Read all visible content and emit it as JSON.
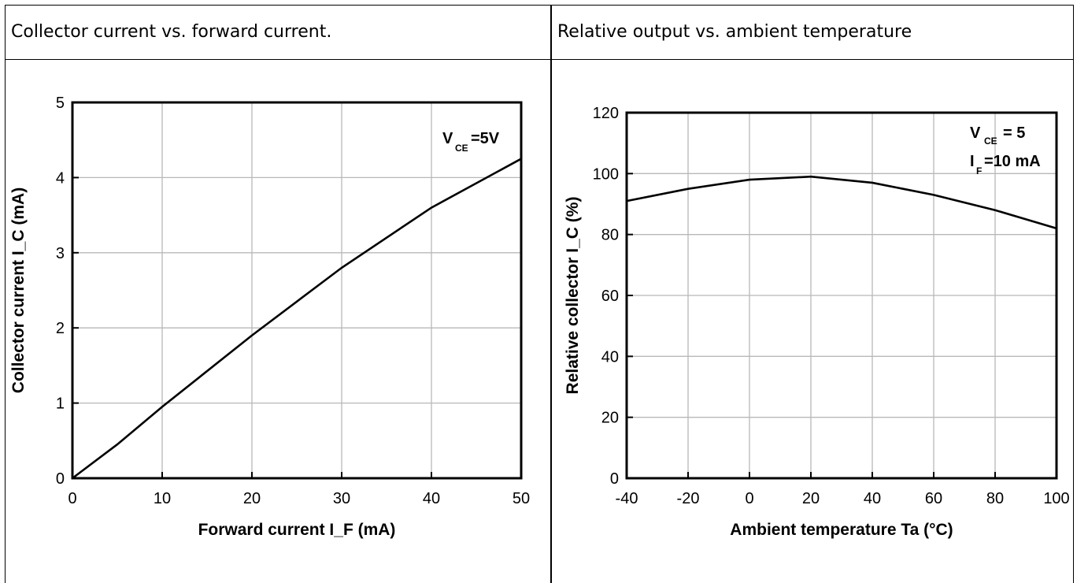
{
  "panels": {
    "left_title": "Collector current vs. forward current.",
    "right_title": "Relative output vs. ambient temperature"
  },
  "chart_data": [
    {
      "type": "line",
      "title": "",
      "xlabel": "Forward current I_F (mA)",
      "ylabel": "Collector current I_C (mA)",
      "xlim": [
        0,
        50
      ],
      "ylim": [
        0,
        5
      ],
      "xticks": [
        "0",
        "10",
        "20",
        "30",
        "40",
        "50"
      ],
      "yticks": [
        "0",
        "1",
        "2",
        "3",
        "4",
        "5"
      ],
      "grid": true,
      "annotation": {
        "main": "V",
        "sub": "CE",
        "value": "=5V"
      },
      "series": [
        {
          "x": [
            0,
            5,
            10,
            20,
            30,
            40,
            50
          ],
          "y": [
            0,
            0.45,
            0.95,
            1.9,
            2.8,
            3.6,
            4.25
          ]
        }
      ]
    },
    {
      "type": "line",
      "title": "",
      "xlabel": "Ambient temperature Ta (°C)",
      "ylabel": "Relative collector I_C (%)",
      "xlim": [
        -40,
        100
      ],
      "ylim": [
        0,
        120
      ],
      "xticks": [
        "-40",
        "-20",
        "0",
        "20",
        "40",
        "60",
        "80",
        "100"
      ],
      "yticks": [
        "0",
        "20",
        "40",
        "60",
        "80",
        "100",
        "120"
      ],
      "grid": true,
      "annotation": {
        "line1_main": "V",
        "line1_sub": "CE",
        "line1_value": "= 5",
        "line2_main": "I",
        "line2_sub": "F",
        "line2_value": "=10 mA"
      },
      "series": [
        {
          "x": [
            -40,
            -20,
            0,
            20,
            40,
            60,
            80,
            100
          ],
          "y": [
            91,
            95,
            98,
            99,
            97,
            93,
            88,
            82
          ]
        }
      ]
    }
  ]
}
